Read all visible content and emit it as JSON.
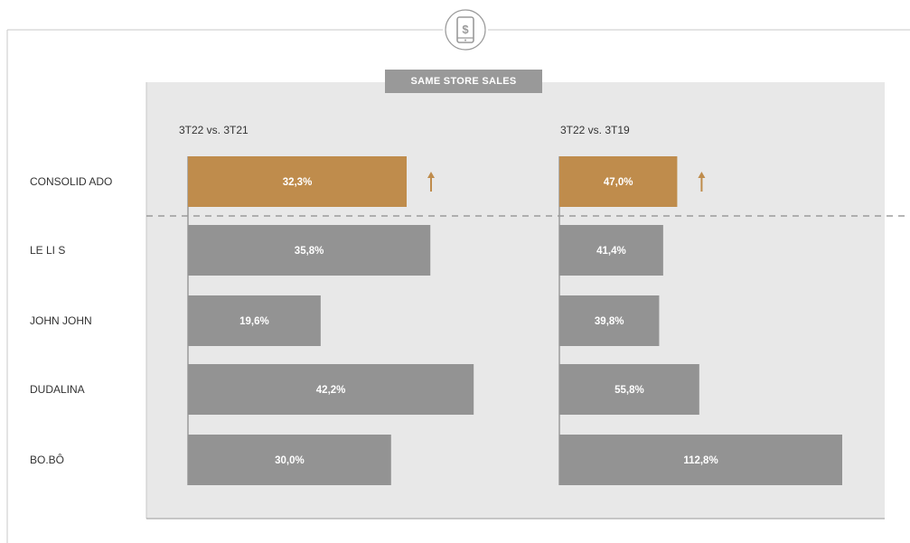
{
  "chart_data": {
    "type": "bar",
    "title": "SAME STORE SALES",
    "categories": [
      "CONSOLID ADO",
      "LE LI S",
      "JOHN JOHN",
      "DUDALINA",
      "BO.BÔ"
    ],
    "panels": [
      {
        "subtitle": "3T22 vs. 3T21",
        "values": [
          32.3,
          35.8,
          19.6,
          42.2,
          30.0
        ],
        "labels": [
          "32,3%",
          "35,8%",
          "19,6%",
          "42,2%",
          "30,0%"
        ]
      },
      {
        "subtitle": "3T22 vs. 3T19",
        "values": [
          47.0,
          41.4,
          39.8,
          55.8,
          112.8
        ],
        "labels": [
          "47,0%",
          "41,4%",
          "39,8%",
          "55,8%",
          "112,8%"
        ]
      }
    ],
    "highlight_category": "CONSOLID ADO",
    "highlight_indicator": "up-arrow",
    "colors": {
      "highlight": "#bf8c4c",
      "bar": "#939393",
      "panel_background": "#e8e8e8",
      "frame": "#c9c9c9",
      "badge": "#999999",
      "text": "#333333",
      "bar_label": "#ffffff"
    },
    "icon": "mobile-payment-icon"
  }
}
